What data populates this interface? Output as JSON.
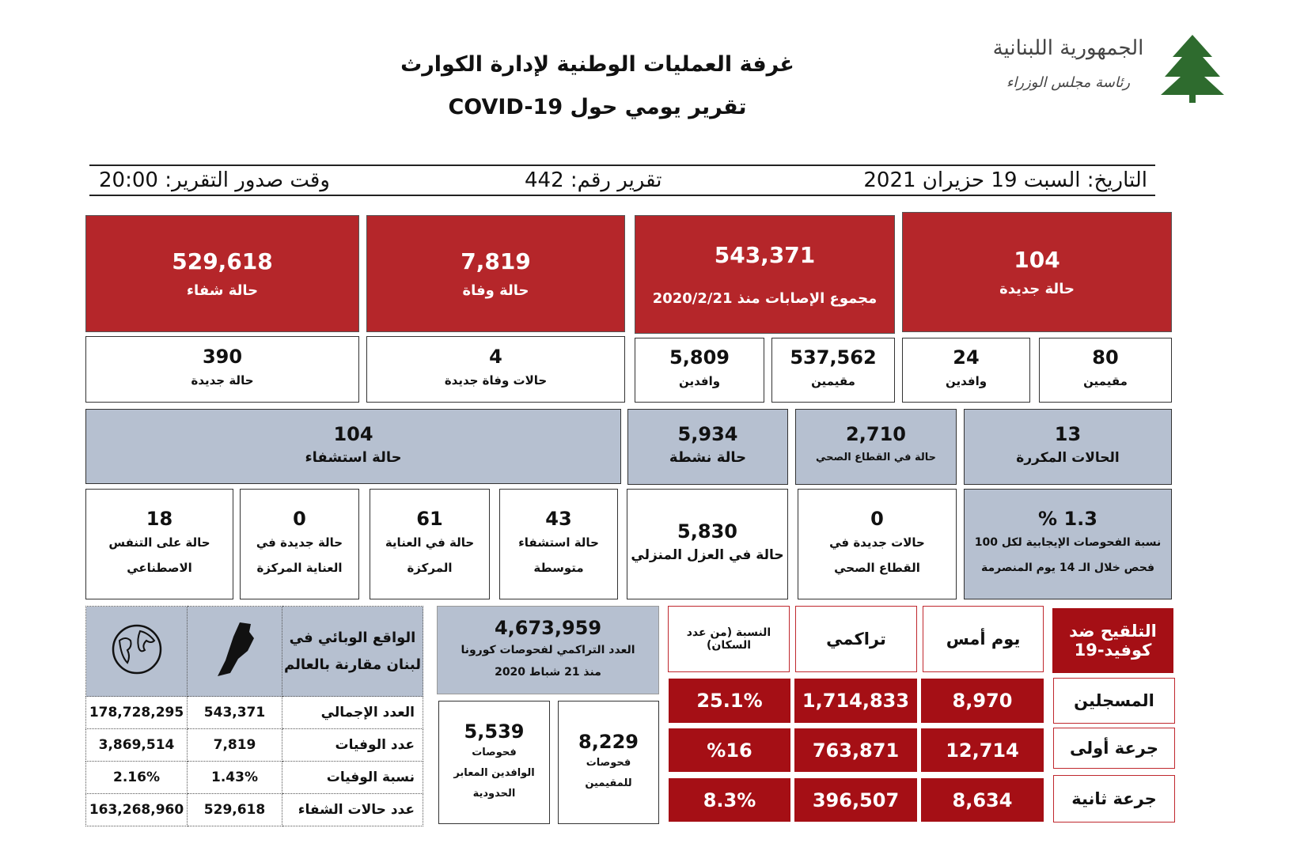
{
  "header": {
    "logo_text": "الجمهورية اللبنانية",
    "logo_sub": "رئاسة مجلس الوزراء",
    "title": "غرفة العمليات الوطنية لإدارة الكوارث",
    "subtitle": "تقرير يومي حول COVID-19"
  },
  "info": {
    "date": "التاريخ: السبت 19 حزيران 2021",
    "report_no": "تقرير رقم: 442",
    "time": "وقت صدور التقرير: 20:00"
  },
  "row1": [
    {
      "value": "529,618",
      "label": "حالة شفاء"
    },
    {
      "value": "7,819",
      "label": "حالة وفاة"
    },
    {
      "value": "543,371",
      "label": "مجموع الإصابات منذ 2020/2/21"
    },
    {
      "value": "104",
      "label": "حالة جديدة"
    }
  ],
  "row2": [
    {
      "value": "390",
      "label": "حالة جديدة"
    },
    {
      "value": "4",
      "label": "حالات وفاة جديدة"
    },
    {
      "value": "5,809",
      "label": "وافدين"
    },
    {
      "value": "537,562",
      "label": "مقيمين"
    },
    {
      "value": "24",
      "label": "وافدين"
    },
    {
      "value": "80",
      "label": "مقيمين"
    }
  ],
  "row3": [
    {
      "value": "104",
      "label": "حالة استشفاء"
    },
    {
      "value": "5,934",
      "label": "حالة نشطة"
    },
    {
      "value": "2,710",
      "label": "حالة في القطاع الصحي"
    },
    {
      "value": "13",
      "label": "الحالات المكررة"
    }
  ],
  "row4": [
    {
      "value": "18",
      "label": "حالة على التنفس الاصطناعي"
    },
    {
      "value": "0",
      "label": "حالة جديدة في العناية المركزة"
    },
    {
      "value": "61",
      "label": "حالة في العناية المركزة"
    },
    {
      "value": "43",
      "label": "حالة استشفاء متوسطة"
    },
    {
      "value": "5,830",
      "label": "حالة في العزل المنزلي"
    },
    {
      "value": "0",
      "label": "حالات جديدة في القطاع الصحي"
    },
    {
      "value": "1.3 %",
      "label": "نسبة الفحوصات الإيجابية لكل 100 فحص خلال الـ 14 يوم المنصرمة"
    }
  ],
  "world": {
    "header": "الواقع الوبائي في لبنان مقارنة بالعالم",
    "icons": [
      "globe-icon",
      "lebanon-map-icon"
    ],
    "rows": [
      {
        "label": "العدد الإجمالي",
        "lebanon": "543,371",
        "world": "178,728,295"
      },
      {
        "label": "عدد الوفيات",
        "lebanon": "7,819",
        "world": "3,869,514"
      },
      {
        "label": "نسبة الوفيات",
        "lebanon": "1.43%",
        "world": "2.16%"
      },
      {
        "label": "عدد حالات الشفاء",
        "lebanon": "529,618",
        "world": "163,268,960"
      }
    ]
  },
  "tests": {
    "total": "4,673,959",
    "total_label": "العدد التراكمي لفحوصات كورونا منذ 21 شباط 2020",
    "arrivals": "5,539",
    "arrivals_label": "فحوصات الوافدين المعابر الحدودية",
    "residents": "8,229",
    "residents_label": "فحوصات للمقيمين"
  },
  "vaccine": {
    "title": "التلقيح ضد كوفيد-19",
    "cols": [
      "يوم أمس",
      "تراكمي",
      "النسبة (من عدد السكان)"
    ],
    "rows": [
      {
        "label": "المسجلين",
        "yesterday": "8,970",
        "cumulative": "1,714,833",
        "pct": "25.1%"
      },
      {
        "label": "جرعة أولى",
        "yesterday": "12,714",
        "cumulative": "763,871",
        "pct": "%16"
      },
      {
        "label": "جرعة ثانية",
        "yesterday": "8,634",
        "cumulative": "396,507",
        "pct": "8.3%"
      }
    ]
  },
  "colors": {
    "red": "#b5262a",
    "grey": "#b6c0d0",
    "vaccine_red": "#a50f15"
  }
}
